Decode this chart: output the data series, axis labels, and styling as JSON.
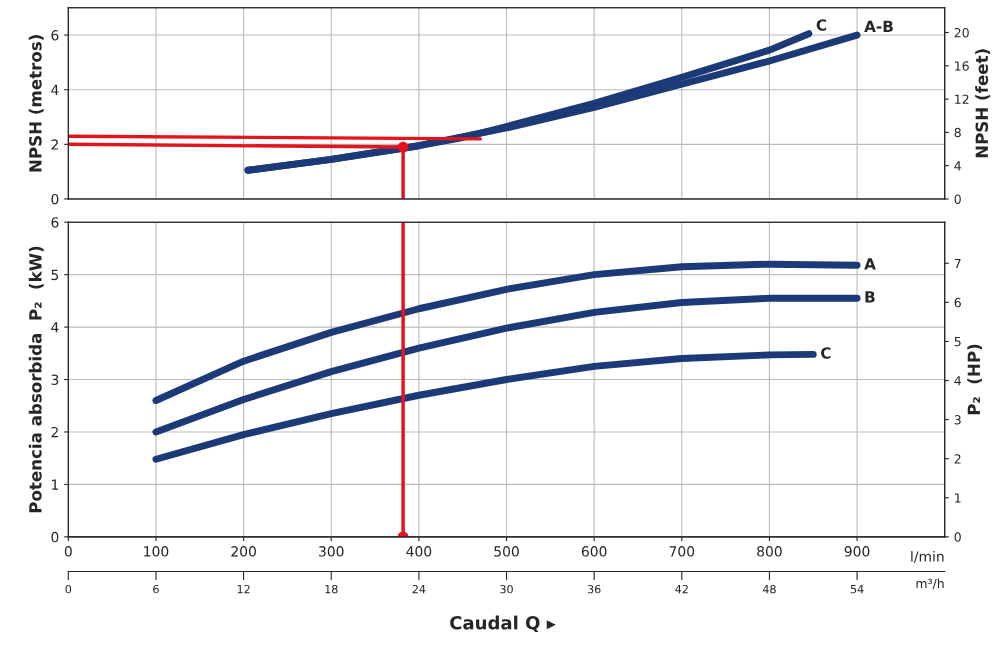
{
  "chart_data": [
    {
      "type": "line",
      "ylabel": "NPSH (metros)",
      "y2label": "NPSH (feet)",
      "xlim": [
        0,
        1000
      ],
      "xticks": [
        0,
        100,
        200,
        300,
        400,
        500,
        600,
        700,
        800,
        900
      ],
      "ylim": [
        0,
        7
      ],
      "yticks": [
        0,
        2,
        4,
        6
      ],
      "y2lim": [
        0,
        22.97
      ],
      "y2ticks": [
        0,
        4,
        8,
        12,
        16,
        20
      ],
      "grid": true,
      "tick_labels": "y",
      "series": [
        {
          "name": "C",
          "color": "#1c3a78",
          "x": [
            205,
            300,
            400,
            450,
            500,
            600,
            700,
            800,
            845
          ],
          "values": [
            1.05,
            1.45,
            1.95,
            2.25,
            2.65,
            3.5,
            4.45,
            5.45,
            6.05
          ]
        },
        {
          "name": "A-B",
          "color": "#1c3a78",
          "x": [
            205,
            300,
            400,
            500,
            600,
            700,
            800,
            900
          ],
          "values": [
            1.05,
            1.45,
            1.95,
            2.6,
            3.35,
            4.2,
            5.05,
            6.0
          ]
        },
        {
          "type": "line",
          "color": "#e3141b",
          "x": [
            0,
            470
          ],
          "values": [
            2.3,
            2.2
          ]
        },
        {
          "type": "line",
          "color": "#e3141b",
          "x": [
            0,
            382
          ],
          "values": [
            2.0,
            1.9
          ]
        },
        {
          "type": "line",
          "color": "#e3141b",
          "x": [
            382,
            382
          ],
          "values": [
            1.9,
            0
          ]
        },
        {
          "type": "scatter",
          "color": "#e3141b",
          "x": [
            382
          ],
          "values": [
            1.9
          ]
        }
      ]
    },
    {
      "type": "line",
      "ylabel": "Potencia absorbida  P₂  (kW)",
      "y2label": "P₂  (HP)",
      "xlabel": "l/min",
      "x2label": "m³/h",
      "xlim": [
        0,
        1000
      ],
      "xticks": [
        0,
        100,
        200,
        300,
        400,
        500,
        600,
        700,
        800,
        900
      ],
      "x2lim": [
        0,
        60
      ],
      "x2ticks": [
        0,
        6,
        12,
        18,
        24,
        30,
        36,
        42,
        48,
        54
      ],
      "ylim": [
        0,
        6
      ],
      "yticks": [
        0,
        1,
        2,
        3,
        4,
        5,
        6
      ],
      "y2lim": [
        0,
        8.05
      ],
      "y2ticks": [
        0,
        1,
        2,
        3,
        4,
        5,
        6,
        7
      ],
      "grid": true,
      "annotations": [
        "Caudal Q ▸"
      ],
      "series": [
        {
          "name": "A",
          "color": "#1c3a78",
          "x": [
            100,
            200,
            300,
            400,
            500,
            600,
            700,
            800,
            900
          ],
          "values": [
            2.6,
            3.35,
            3.9,
            4.35,
            4.72,
            5.0,
            5.15,
            5.2,
            5.18
          ]
        },
        {
          "name": "B",
          "color": "#1c3a78",
          "x": [
            100,
            200,
            300,
            400,
            500,
            600,
            700,
            800,
            900
          ],
          "values": [
            2.0,
            2.62,
            3.15,
            3.6,
            3.98,
            4.28,
            4.47,
            4.55,
            4.55
          ]
        },
        {
          "name": "C",
          "color": "#1c3a78",
          "x": [
            100,
            200,
            300,
            400,
            500,
            600,
            700,
            800,
            850
          ],
          "values": [
            1.48,
            1.95,
            2.35,
            2.7,
            3.0,
            3.25,
            3.4,
            3.47,
            3.48
          ]
        },
        {
          "type": "line",
          "color": "#e3141b",
          "x": [
            382,
            382
          ],
          "values": [
            6,
            0
          ]
        },
        {
          "type": "scatter",
          "color": "#e3141b",
          "x": [
            382
          ],
          "values": [
            0
          ]
        }
      ]
    }
  ]
}
